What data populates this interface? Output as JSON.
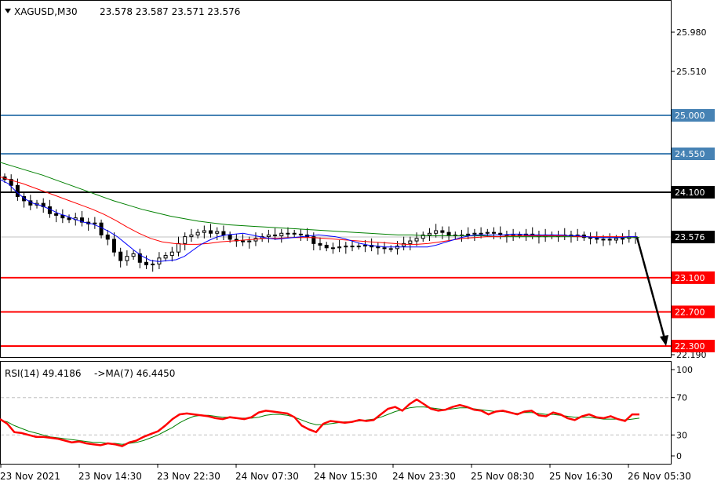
{
  "header": {
    "symbol": "XAGUSD,M30",
    "ohlc": "23.578 23.587 23.571 23.576"
  },
  "rsi_header": {
    "label": "RSI(14) 49.4186",
    "ma_label": "->MA(7) 46.4450"
  },
  "colors": {
    "background": "#ffffff",
    "frame": "#000000",
    "grid": "#c0c0c0",
    "resistance_line": "#4682b4",
    "support_line": "#ff0000",
    "pivot_line": "#000000",
    "ma_fast": "#0000ff",
    "ma_mid": "#ff0000",
    "ma_slow": "#008000",
    "rsi_line": "#ff0000",
    "rsi_ma_line": "#008000",
    "arrow": "#000000",
    "candle": "#000000"
  },
  "chart_data": [
    {
      "type": "candlestick",
      "title": "XAGUSD,M30",
      "ylim": [
        22.19,
        26.2
      ],
      "y_ticks": [
        "25.980",
        "25.510",
        "22.190"
      ],
      "x_ticks": [
        "23 Nov 2021",
        "23 Nov 14:30",
        "23 Nov 22:30",
        "24 Nov 07:30",
        "24 Nov 15:30",
        "24 Nov 23:30",
        "25 Nov 08:30",
        "25 Nov 16:30",
        "26 Nov 05:30"
      ],
      "current_price": {
        "value": 23.576,
        "label": "23.576"
      },
      "levels": [
        {
          "value": 25.0,
          "label": "25.000",
          "kind": "resistance"
        },
        {
          "value": 24.55,
          "label": "24.550",
          "kind": "resistance"
        },
        {
          "value": 24.1,
          "label": "24.100",
          "kind": "pivot"
        },
        {
          "value": 23.1,
          "label": "23.100",
          "kind": "support"
        },
        {
          "value": 22.7,
          "label": "22.700",
          "kind": "support"
        },
        {
          "value": 22.3,
          "label": "22.300",
          "kind": "support"
        }
      ],
      "projection": {
        "from": 23.57,
        "to": 22.3
      },
      "close": [
        24.25,
        24.18,
        24.05,
        24.0,
        23.95,
        23.97,
        23.93,
        23.85,
        23.83,
        23.8,
        23.78,
        23.8,
        23.75,
        23.73,
        23.74,
        23.6,
        23.55,
        23.4,
        23.3,
        23.35,
        23.38,
        23.28,
        23.25,
        23.26,
        23.33,
        23.36,
        23.4,
        23.5,
        23.58,
        23.6,
        23.63,
        23.65,
        23.62,
        23.64,
        23.6,
        23.55,
        23.53,
        23.52,
        23.53,
        23.56,
        23.58,
        23.6,
        23.59,
        23.62,
        23.62,
        23.61,
        23.6,
        23.58,
        23.5,
        23.48,
        23.45,
        23.45,
        23.46,
        23.47,
        23.47,
        23.47,
        23.48,
        23.46,
        23.45,
        23.44,
        23.44,
        23.47,
        23.5,
        23.53,
        23.56,
        23.6,
        23.62,
        23.65,
        23.63,
        23.6,
        23.59,
        23.6,
        23.61,
        23.62,
        23.62,
        23.63,
        23.62,
        23.6,
        23.59,
        23.6,
        23.6,
        23.61,
        23.6,
        23.58,
        23.6,
        23.59,
        23.59,
        23.6,
        23.59,
        23.6,
        23.57,
        23.56,
        23.55,
        23.55,
        23.54,
        23.56,
        23.56,
        23.58,
        23.576
      ],
      "ma_fast": [
        24.25,
        24.2,
        24.1,
        24.02,
        23.97,
        23.94,
        23.9,
        23.85,
        23.82,
        23.78,
        23.75,
        23.73,
        23.69,
        23.64,
        23.58,
        23.5,
        23.42,
        23.35,
        23.3,
        23.29,
        23.3,
        23.31,
        23.35,
        23.42,
        23.49,
        23.54,
        23.58,
        23.6,
        23.61,
        23.62,
        23.6,
        23.58,
        23.56,
        23.55,
        23.56,
        23.57,
        23.58,
        23.59,
        23.6,
        23.59,
        23.58,
        23.56,
        23.53,
        23.5,
        23.48,
        23.47,
        23.46,
        23.46,
        23.46,
        23.46,
        23.46,
        23.46,
        23.48,
        23.51,
        23.54,
        23.57,
        23.59,
        23.6,
        23.6,
        23.6,
        23.6,
        23.61,
        23.61,
        23.6,
        23.6,
        23.6,
        23.6,
        23.6,
        23.59,
        23.59,
        23.58,
        23.57,
        23.57,
        23.57,
        23.57,
        23.58,
        23.58
      ],
      "ma_mid": [
        24.28,
        24.24,
        24.2,
        24.15,
        24.1,
        24.05,
        24.0,
        23.95,
        23.9,
        23.84,
        23.77,
        23.69,
        23.62,
        23.56,
        23.52,
        23.5,
        23.49,
        23.49,
        23.5,
        23.52,
        23.53,
        23.54,
        23.55,
        23.56,
        23.56,
        23.57,
        23.57,
        23.57,
        23.56,
        23.55,
        23.54,
        23.53,
        23.52,
        23.51,
        23.5,
        23.49,
        23.49,
        23.5,
        23.52,
        23.54,
        23.56,
        23.57,
        23.58,
        23.58,
        23.59,
        23.59,
        23.59,
        23.59,
        23.59,
        23.59,
        23.58,
        23.58,
        23.58,
        23.58,
        23.58,
        23.58
      ],
      "ma_slow": [
        24.45,
        24.4,
        24.35,
        24.3,
        24.24,
        24.18,
        24.12,
        24.06,
        24.0,
        23.95,
        23.9,
        23.86,
        23.82,
        23.79,
        23.76,
        23.74,
        23.72,
        23.71,
        23.7,
        23.69,
        23.68,
        23.67,
        23.66,
        23.65,
        23.64,
        23.63,
        23.62,
        23.61,
        23.6,
        23.6,
        23.59,
        23.59,
        23.59,
        23.59,
        23.59,
        23.58,
        23.58,
        23.58,
        23.58,
        23.58,
        23.58,
        23.58,
        23.57,
        23.57,
        23.57,
        23.57
      ]
    },
    {
      "type": "line",
      "title": "RSI(14) 49.4186",
      "ylim": [
        0,
        100
      ],
      "y_ticks": [
        100,
        70,
        30,
        0
      ],
      "levels": [
        70,
        30
      ],
      "series": [
        {
          "name": "RSI(14) 49.4186",
          "values": [
            47,
            42,
            33,
            32,
            30,
            28,
            28,
            27,
            26,
            24,
            22,
            23,
            21,
            20,
            19,
            21,
            20,
            18,
            22,
            24,
            28,
            31,
            34,
            40,
            47,
            52,
            53,
            52,
            51,
            50,
            48,
            47,
            49,
            48,
            47,
            49,
            54,
            56,
            55,
            54,
            53,
            49,
            40,
            36,
            33,
            42,
            45,
            44,
            43,
            44,
            46,
            45,
            46,
            52,
            58,
            60,
            56,
            63,
            68,
            63,
            58,
            56,
            57,
            60,
            62,
            60,
            57,
            56,
            52,
            55,
            56,
            54,
            52,
            55,
            56,
            51,
            50,
            54,
            52,
            48,
            46,
            50,
            52,
            49,
            48,
            50,
            47,
            45,
            52,
            52
          ]
        },
        {
          "name": "->MA(7) 46.4450",
          "values": [
            46,
            44,
            40,
            37,
            34,
            32,
            30,
            28,
            27,
            26,
            25,
            24,
            23,
            22,
            22,
            21,
            21,
            20,
            21,
            22,
            24,
            27,
            30,
            34,
            38,
            43,
            47,
            50,
            51,
            51,
            50,
            49,
            49,
            48,
            48,
            48,
            49,
            51,
            52,
            52,
            51,
            49,
            46,
            43,
            41,
            41,
            42,
            43,
            44,
            44,
            45,
            46,
            47,
            49,
            52,
            55,
            57,
            59,
            60,
            60,
            59,
            58,
            57,
            58,
            59,
            59,
            58,
            57,
            56,
            55,
            55,
            54,
            53,
            54,
            54,
            53,
            52,
            52,
            51,
            50,
            49,
            49,
            49,
            48,
            47,
            47,
            47,
            46,
            47,
            48
          ]
        }
      ]
    }
  ]
}
